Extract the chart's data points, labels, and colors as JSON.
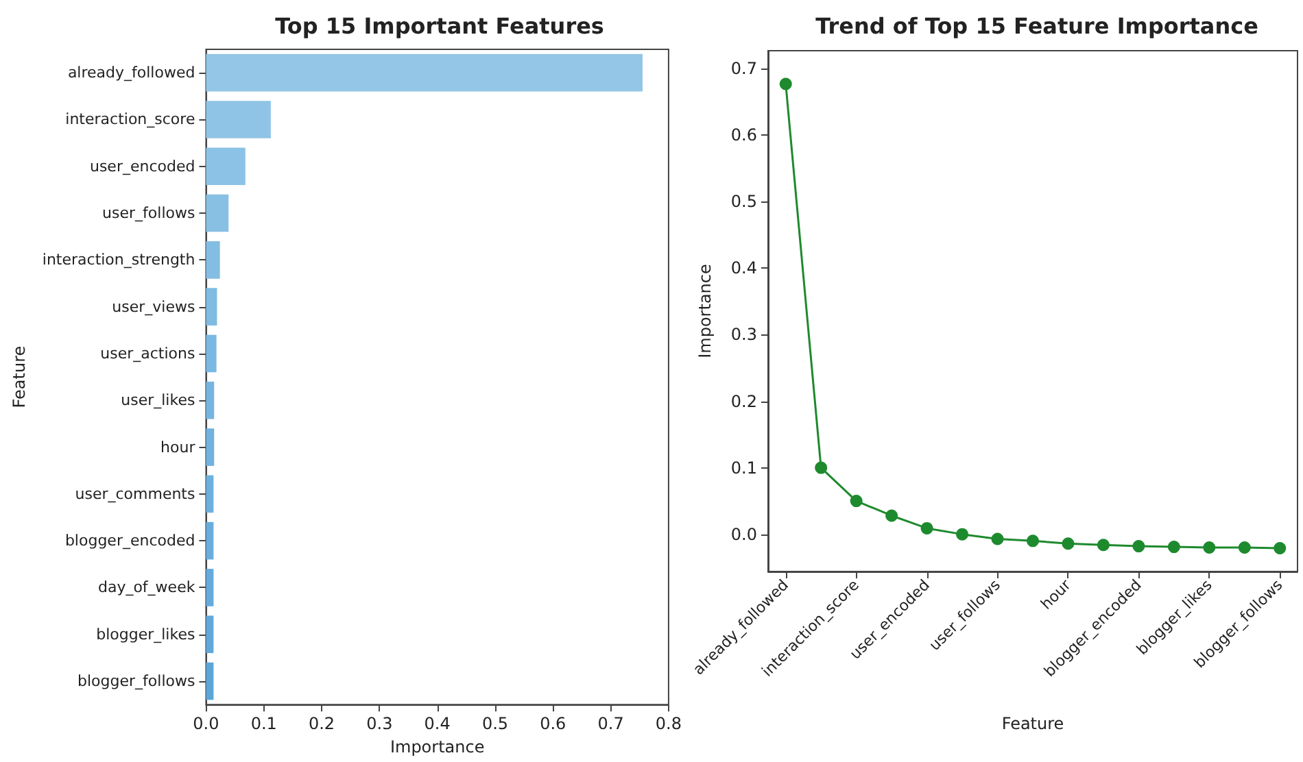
{
  "chart_data": [
    {
      "type": "bar",
      "orientation": "horizontal",
      "title": "Top 15 Important Features",
      "xlabel": "Importance",
      "ylabel": "Feature",
      "categories": [
        "already_followed",
        "interaction_score",
        "user_encoded",
        "user_follows",
        "interaction_strength",
        "user_views",
        "user_actions",
        "user_likes",
        "hour",
        "user_comments",
        "blogger_encoded",
        "day_of_week",
        "blogger_likes",
        "blogger_follows"
      ],
      "values": [
        0.755,
        0.112,
        0.068,
        0.039,
        0.024,
        0.019,
        0.018,
        0.014,
        0.014,
        0.013,
        0.013,
        0.013,
        0.013,
        0.013
      ],
      "colors": [
        "#93c6e7",
        "#90c4e6",
        "#8cc2e5",
        "#88c0e4",
        "#84bde3",
        "#80bbe2",
        "#7bb8e1",
        "#77b5e0",
        "#72b2de",
        "#6eb0dd",
        "#69addc",
        "#65aadb",
        "#61a8da",
        "#5ca5d8"
      ],
      "xlim": [
        0,
        0.8
      ],
      "xticks": [
        {
          "value": 0,
          "label": "0.0"
        },
        0.1,
        0.2,
        0.3,
        0.4,
        0.5,
        0.6,
        0.7,
        0.8
      ],
      "grid": false
    },
    {
      "type": "line",
      "title": "Trend of Top 15 Feature Importance",
      "xlabel": "Feature",
      "ylabel": "Importance",
      "categories": [
        "already_followed",
        null,
        "interaction_score",
        null,
        "user_encoded",
        null,
        "user_follows",
        null,
        "hour",
        null,
        "blogger_encoded",
        null,
        "blogger_likes",
        null,
        "blogger_follows"
      ],
      "series": [
        {
          "color": "#1e8a2e",
          "values": [
            0.677,
            0.1,
            0.05,
            0.028,
            0.009,
            0.0,
            -0.007,
            -0.01,
            -0.014,
            -0.016,
            -0.018,
            -0.019,
            -0.02,
            -0.02,
            -0.021
          ]
        }
      ],
      "ylim": [
        -0.056,
        0.727
      ],
      "yticks": [
        {
          "value": 0,
          "label": "0.0"
        },
        0.1,
        0.2,
        0.3,
        0.4,
        0.5,
        0.6,
        0.7
      ],
      "marker": "circle",
      "line_style": "solid",
      "grid": false
    }
  ]
}
